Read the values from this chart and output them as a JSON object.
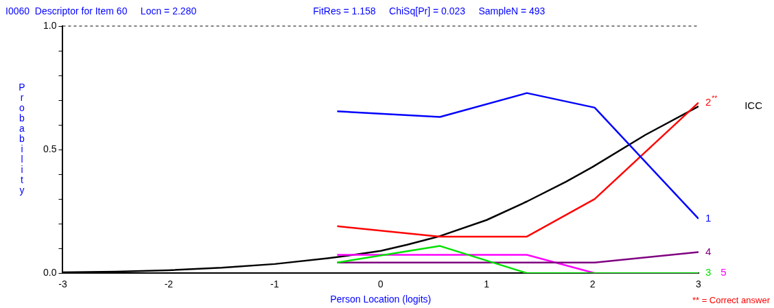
{
  "chart_data": {
    "type": "line",
    "title": "I0060  Descriptor for Item 60     Locn = 2.280",
    "subtitle": "FitRes = 1.158     ChiSq[Pr] = 0.023     SampleN = 493",
    "xlabel": "Person Location (logits)",
    "ylabel": "Probability",
    "xlim": [
      -3,
      3
    ],
    "xticks": [
      -3,
      -2,
      -1,
      0,
      1,
      2,
      3
    ],
    "ylim": [
      0,
      1
    ],
    "yticks": [
      {
        "value": 0,
        "label": "0.0"
      },
      {
        "value": 0.1,
        "label": null
      },
      {
        "value": 0.2,
        "label": null
      },
      {
        "value": 0.3,
        "label": null
      },
      {
        "value": 0.4,
        "label": null
      },
      {
        "value": 0.5,
        "label": "0.5"
      },
      {
        "value": 0.6,
        "label": null
      },
      {
        "value": 0.7,
        "label": null
      },
      {
        "value": 0.8,
        "label": null
      },
      {
        "value": 0.9,
        "label": null
      },
      {
        "value": 1,
        "label": "1.0"
      }
    ],
    "grid": false,
    "legend": false,
    "marker": "none",
    "line_style": "solid",
    "ref_lines": [
      {
        "axis": "y",
        "value": 1,
        "label": null,
        "color": "#000000",
        "line_style": "dashed"
      }
    ],
    "annotations": [
      "** = Correct answer"
    ],
    "series": [
      {
        "name": "1",
        "color": "#0000ff",
        "x": [
          -0.41,
          0.56,
          1.38,
          2.02,
          3
        ],
        "values": [
          0.655,
          0.632,
          0.729,
          0.67,
          0.22
        ]
      },
      {
        "name": "2$^{**}$",
        "color": "#ff0000",
        "x": [
          -0.41,
          0.56,
          1.38,
          2.02,
          3
        ],
        "values": [
          0.19,
          0.148,
          0.148,
          0.3,
          0.69
        ]
      },
      {
        "name": "3",
        "color": "#00e000",
        "x": [
          -0.41,
          0.56,
          1.38,
          2.02,
          3
        ],
        "values": [
          0.043,
          0.11,
          0,
          0,
          0
        ]
      },
      {
        "name": "4",
        "color": "#800080",
        "x": [
          -0.41,
          0.56,
          1.38,
          2.02,
          3
        ],
        "values": [
          0.043,
          0.043,
          0.043,
          0.043,
          0.085
        ]
      },
      {
        "name": "5",
        "color": "#ff00ff",
        "x": [
          -0.41,
          0.56,
          1.38,
          2.02,
          3
        ],
        "values": [
          0.074,
          0.074,
          0.074,
          0,
          0
        ]
      },
      {
        "name": "ICC",
        "color": "#000000",
        "x": [
          -3,
          -2.5,
          -2,
          -1.5,
          -1,
          -0.5,
          -0.41,
          0,
          0.25,
          0.56,
          1,
          1.38,
          1.75,
          2,
          2.5,
          3
        ],
        "values": [
          0.003,
          0.006,
          0.012,
          0.022,
          0.037,
          0.06,
          0.065,
          0.09,
          0.115,
          0.15,
          0.215,
          0.29,
          0.37,
          0.43,
          0.56,
          0.675
        ]
      }
    ]
  }
}
